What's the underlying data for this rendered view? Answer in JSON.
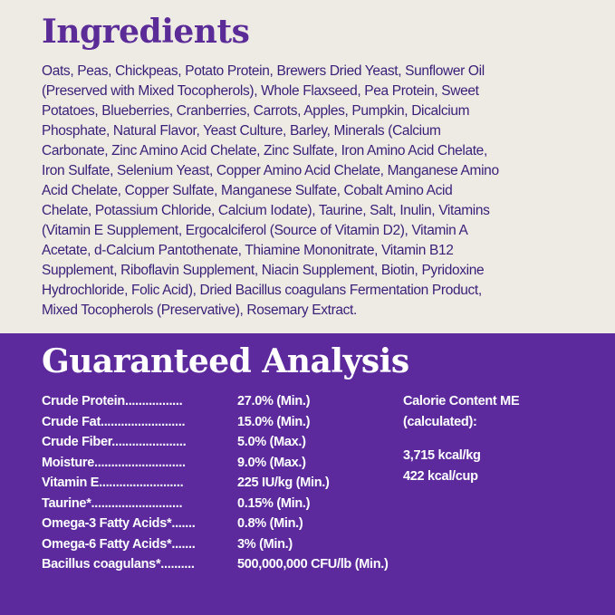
{
  "ingredients": {
    "title": "Ingredients",
    "lines": [
      "Oats, Peas, Chickpeas, Potato Protein, Brewers Dried Yeast, Sunflower Oil",
      "(Preserved with Mixed Tocopherols), Whole Flaxseed, Pea Protein, Sweet",
      "Potatoes, Blueberries, Cranberries, Carrots, Apples, Pumpkin, Dicalcium",
      "Phosphate, Natural Flavor, Yeast Culture, Barley, Minerals (Calcium",
      "Carbonate, Zinc Amino Acid Chelate, Zinc Sulfate, Iron Amino Acid Chelate,",
      "Iron Sulfate, Selenium Yeast, Copper Amino Acid Chelate, Manganese Amino",
      "Acid Chelate, Copper Sulfate, Manganese Sulfate, Cobalt Amino Acid",
      "Chelate, Potassium Chloride, Calcium Iodate), Taurine, Salt, Inulin, Vitamins",
      "(Vitamin E Supplement, Ergocalciferol (Source of Vitamin D2), Vitamin A",
      "Acetate, d-Calcium Pantothenate, Thiamine Mononitrate, Vitamin B12",
      "Supplement, Riboflavin Supplement, Niacin Supplement, Biotin, Pyridoxine",
      "Hydrochloride, Folic Acid), Dried Bacillus coagulans Fermentation Product,",
      "Mixed Tocopherols (Preservative), Rosemary Extract."
    ]
  },
  "analysis": {
    "title": "Guaranteed Analysis",
    "rows": [
      {
        "label": "Crude  Protein.................",
        "value": "27.0% (Min.)"
      },
      {
        "label": "Crude  Fat.........................",
        "value": "15.0% (Min.)"
      },
      {
        "label": "Crude  Fiber......................",
        "value": "5.0% (Max.)"
      },
      {
        "label": "Moisture...........................",
        "value": "9.0% (Max.)"
      },
      {
        "label": "Vitamin  E.........................",
        "value": "225 IU/kg (Min.)"
      },
      {
        "label": "Taurine*...........................",
        "value": "0.15% (Min.)"
      },
      {
        "label": "Omega-3 Fatty Acids*.......",
        "value": "0.8% (Min.)"
      },
      {
        "label": "Omega-6 Fatty Acids*.......",
        "value": "3% (Min.)"
      },
      {
        "label": "Bacillus  coagulans*..........",
        "value": "500,000,000 CFU/lb (Min.)"
      }
    ],
    "calorie": {
      "line1": "Calorie Content ME",
      "line2": "(calculated):",
      "kg": "3,715 kcal/kg",
      "cup": "422 kcal/cup"
    }
  },
  "colors": {
    "cream": "#eeebe4",
    "purple": "#5c2a9d",
    "text_purple": "#3a1f78"
  }
}
